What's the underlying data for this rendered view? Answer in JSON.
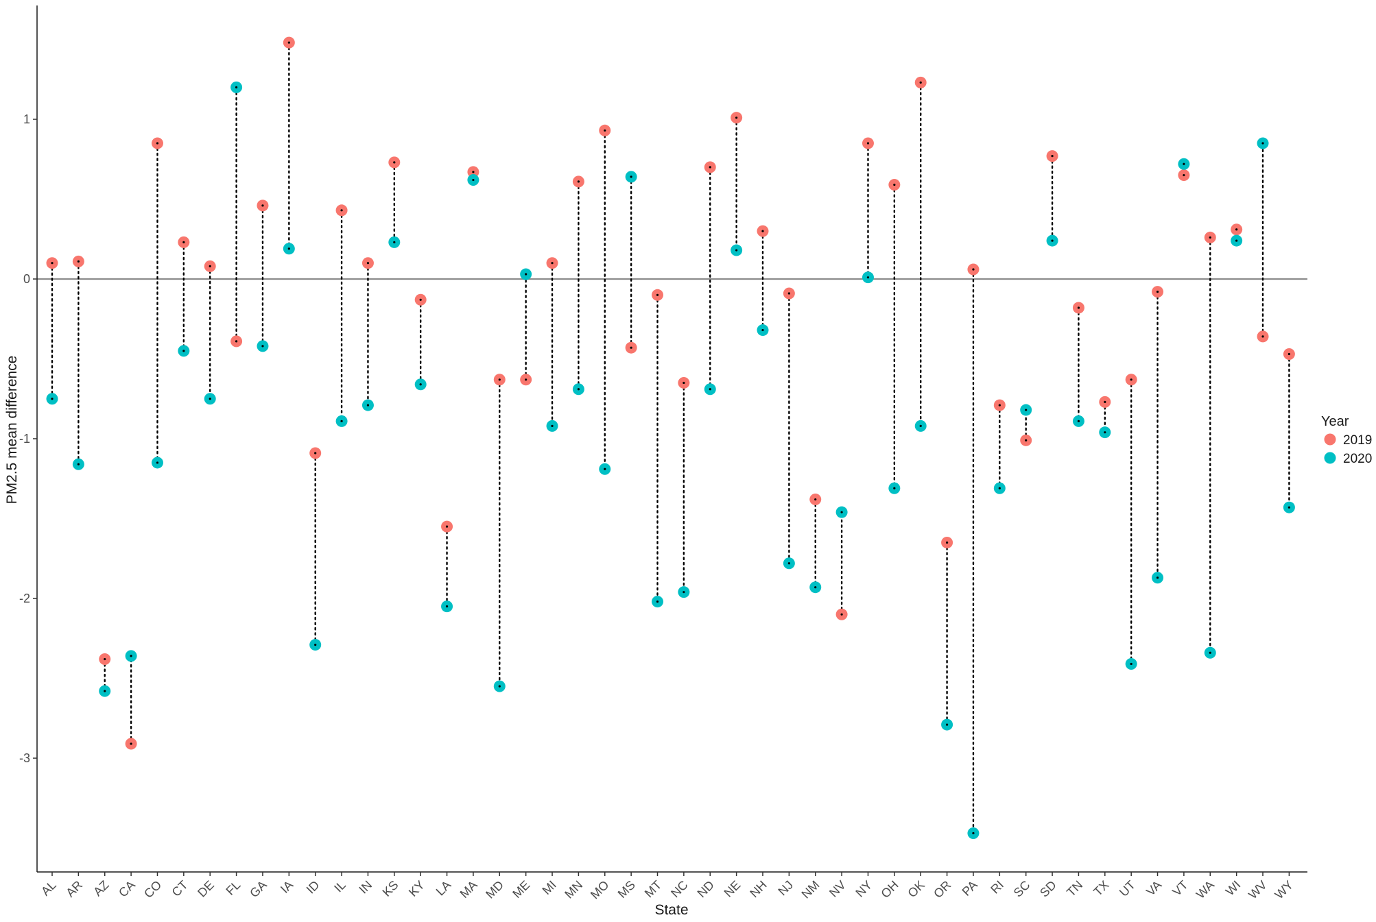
{
  "chart_data": {
    "type": "scatter",
    "xlabel": "State",
    "ylabel": "PM2.5 mean difference",
    "ylim": [
      -3.65,
      1.72
    ],
    "yticks": [
      -3,
      -2,
      -1,
      0,
      1
    ],
    "grid": false,
    "reference_line_y": 0,
    "legend": {
      "title": "Year",
      "placement": "right",
      "entries": [
        {
          "label": "2019",
          "color": "#F8766D"
        },
        {
          "label": "2020",
          "color": "#00BFC4"
        }
      ]
    },
    "categories": [
      "AL",
      "AR",
      "AZ",
      "CA",
      "CO",
      "CT",
      "DE",
      "FL",
      "GA",
      "IA",
      "ID",
      "IL",
      "IN",
      "KS",
      "KY",
      "LA",
      "MA",
      "MD",
      "ME",
      "MI",
      "MN",
      "MO",
      "MS",
      "MT",
      "NC",
      "ND",
      "NE",
      "NH",
      "NJ",
      "NM",
      "NV",
      "NY",
      "OH",
      "OK",
      "OR",
      "PA",
      "RI",
      "SC",
      "SD",
      "TN",
      "TX",
      "UT",
      "VA",
      "VT",
      "WA",
      "WI",
      "WV",
      "WY"
    ],
    "series": [
      {
        "name": "2019",
        "color": "#F8766D",
        "values": [
          0.1,
          0.11,
          -2.38,
          -2.91,
          0.85,
          0.23,
          0.08,
          -0.39,
          0.46,
          1.48,
          -1.09,
          0.43,
          0.1,
          0.73,
          -0.13,
          -1.55,
          0.67,
          -0.63,
          -0.63,
          0.1,
          0.61,
          0.93,
          -0.43,
          -0.1,
          -0.65,
          0.7,
          1.01,
          0.3,
          -0.09,
          -1.38,
          -2.1,
          0.85,
          0.59,
          1.23,
          -1.65,
          0.06,
          -0.79,
          -1.01,
          0.77,
          -0.18,
          -0.77,
          -0.63,
          -0.08,
          0.65,
          0.26,
          0.31,
          -0.36,
          -0.47
        ]
      },
      {
        "name": "2020",
        "color": "#00BFC4",
        "values": [
          -0.75,
          -1.16,
          -2.58,
          -2.36,
          -1.15,
          -0.45,
          -0.75,
          1.2,
          -0.42,
          0.19,
          -2.29,
          -0.89,
          -0.79,
          0.23,
          -0.66,
          -2.05,
          0.62,
          -2.55,
          0.03,
          -0.92,
          -0.69,
          -1.19,
          0.64,
          -2.02,
          -1.96,
          -0.69,
          0.18,
          -0.32,
          -1.78,
          -1.93,
          -1.46,
          0.01,
          -1.31,
          -0.92,
          -2.79,
          -3.47,
          -1.31,
          -0.82,
          0.24,
          -0.89,
          -0.96,
          -2.41,
          -1.87,
          0.72,
          -2.34,
          0.24,
          0.85,
          -1.43
        ]
      }
    ]
  }
}
